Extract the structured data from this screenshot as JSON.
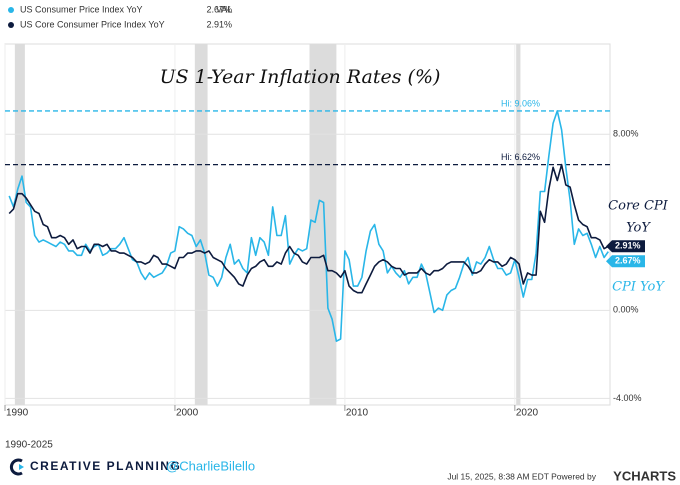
{
  "chart_data": {
    "type": "line",
    "title": "US 1-Year Inflation Rates (%)",
    "legend_header": "VAL",
    "xlim": [
      1990,
      2025.6
    ],
    "xticks": [
      1990,
      2000,
      2010,
      2020
    ],
    "ylim": [
      -4.3,
      12.1
    ],
    "yticks": [
      {
        "value": 8,
        "label": "8.00%"
      },
      {
        "value": 0,
        "label": "0.00%"
      },
      {
        "value": -4,
        "label": "-4.00%"
      }
    ],
    "grid": true,
    "shaded_periods": [
      [
        1990.58,
        1991.17
      ],
      [
        2001.17,
        2001.92
      ],
      [
        2007.92,
        2009.5
      ],
      [
        2020.08,
        2020.33
      ]
    ],
    "highs": [
      {
        "value": 9.06,
        "label": "Hi: 9.06%",
        "color": "#29b6e8"
      },
      {
        "value": 6.62,
        "label": "Hi: 6.62%",
        "color": "#0d1b3e"
      }
    ],
    "x": [
      1990.25,
      1990.5,
      1990.75,
      1991,
      1991.25,
      1991.5,
      1991.75,
      1992,
      1992.25,
      1992.5,
      1992.75,
      1993,
      1993.25,
      1993.5,
      1993.75,
      1994,
      1994.25,
      1994.5,
      1994.75,
      1995,
      1995.25,
      1995.5,
      1995.75,
      1996,
      1996.25,
      1996.5,
      1996.75,
      1997,
      1997.25,
      1997.5,
      1997.75,
      1998,
      1998.25,
      1998.5,
      1998.75,
      1999,
      1999.25,
      1999.5,
      1999.75,
      2000,
      2000.25,
      2000.5,
      2000.75,
      2001,
      2001.25,
      2001.5,
      2001.75,
      2002,
      2002.25,
      2002.5,
      2002.75,
      2003,
      2003.25,
      2003.5,
      2003.75,
      2004,
      2004.25,
      2004.5,
      2004.75,
      2005,
      2005.25,
      2005.5,
      2005.75,
      2006,
      2006.25,
      2006.5,
      2006.75,
      2007,
      2007.25,
      2007.5,
      2007.75,
      2008,
      2008.25,
      2008.5,
      2008.75,
      2009,
      2009.25,
      2009.5,
      2009.75,
      2010,
      2010.25,
      2010.5,
      2010.75,
      2011,
      2011.25,
      2011.5,
      2011.75,
      2012,
      2012.25,
      2012.5,
      2012.75,
      2013,
      2013.25,
      2013.5,
      2013.75,
      2014,
      2014.25,
      2014.5,
      2014.75,
      2015,
      2015.25,
      2015.5,
      2015.75,
      2016,
      2016.25,
      2016.5,
      2016.75,
      2017,
      2017.25,
      2017.5,
      2017.75,
      2018,
      2018.25,
      2018.5,
      2018.75,
      2019,
      2019.25,
      2019.5,
      2019.75,
      2020,
      2020.25,
      2020.5,
      2020.75,
      2021,
      2021.25,
      2021.5,
      2021.75,
      2022,
      2022.25,
      2022.5,
      2022.75,
      2023,
      2023.25,
      2023.5,
      2023.75,
      2024,
      2024.25,
      2024.5,
      2024.75,
      2025,
      2025.25,
      2025.5
    ],
    "series": [
      {
        "name": "US Consumer Price Index YoY",
        "color": "#29b6e8",
        "last_label": "2.67%",
        "tag_lines": [
          "CPI YoY"
        ],
        "values": [
          5.2,
          4.7,
          5.5,
          6.1,
          4.9,
          4.7,
          3.4,
          3.1,
          3.2,
          3.1,
          3.0,
          2.9,
          3.1,
          3.0,
          2.7,
          2.7,
          2.5,
          2.5,
          3.0,
          2.7,
          2.9,
          3.0,
          2.5,
          2.6,
          2.8,
          2.8,
          3.0,
          3.3,
          2.8,
          2.3,
          2.2,
          1.7,
          1.4,
          1.7,
          1.5,
          1.6,
          1.7,
          2.0,
          2.6,
          2.7,
          3.8,
          3.7,
          3.5,
          3.4,
          2.9,
          3.2,
          2.6,
          1.6,
          1.5,
          1.1,
          1.5,
          2.4,
          3.0,
          2.1,
          2.3,
          1.9,
          1.7,
          3.3,
          2.5,
          3.3,
          3.1,
          2.5,
          4.7,
          3.4,
          3.4,
          4.3,
          2.1,
          2.5,
          2.8,
          2.7,
          2.8,
          4.1,
          4.0,
          5.0,
          4.9,
          0.1,
          -0.4,
          -1.4,
          -1.3,
          2.7,
          2.3,
          1.1,
          1.1,
          1.5,
          2.7,
          3.6,
          3.9,
          3.0,
          2.7,
          1.7,
          2.0,
          1.7,
          1.5,
          1.8,
          1.2,
          1.5,
          1.5,
          2.1,
          1.7,
          0.8,
          -0.1,
          0.1,
          0.0,
          0.7,
          0.9,
          1.0,
          1.5,
          2.1,
          2.4,
          1.6,
          2.2,
          2.1,
          2.4,
          2.9,
          2.3,
          1.9,
          1.9,
          1.6,
          1.7,
          2.3,
          1.5,
          0.6,
          1.4,
          1.4,
          2.6,
          5.4,
          5.4,
          7.0,
          8.5,
          9.06,
          8.2,
          6.5,
          5.0,
          3.0,
          3.7,
          3.4,
          3.5,
          3.0,
          2.4,
          2.9,
          2.4,
          2.67
        ]
      },
      {
        "name": "US Core Consumer Price Index YoY",
        "color": "#0d1b3e",
        "last_label": "2.91%",
        "tag_lines": [
          "Core CPI",
          "YoY"
        ],
        "values": [
          4.4,
          4.6,
          5.3,
          5.3,
          5.1,
          4.8,
          4.5,
          4.4,
          3.9,
          3.8,
          3.3,
          3.3,
          3.4,
          3.3,
          3.0,
          3.2,
          2.8,
          2.9,
          2.9,
          2.6,
          3.0,
          3.0,
          2.9,
          3.0,
          2.7,
          2.7,
          2.6,
          2.6,
          2.5,
          2.4,
          2.2,
          2.2,
          2.1,
          2.2,
          2.5,
          2.4,
          2.1,
          2.1,
          2.0,
          1.9,
          2.4,
          2.4,
          2.6,
          2.6,
          2.7,
          2.7,
          2.6,
          2.7,
          2.4,
          2.3,
          2.2,
          1.9,
          1.7,
          1.5,
          1.2,
          1.1,
          1.6,
          1.9,
          2.0,
          2.2,
          2.3,
          2.0,
          2.0,
          2.2,
          2.1,
          2.6,
          2.9,
          2.6,
          2.5,
          2.2,
          2.1,
          2.4,
          2.4,
          2.4,
          2.5,
          1.8,
          1.8,
          1.7,
          1.5,
          1.8,
          1.1,
          0.9,
          0.8,
          0.8,
          1.2,
          1.6,
          2.0,
          2.2,
          2.3,
          2.2,
          2.0,
          1.9,
          1.9,
          1.6,
          1.7,
          1.7,
          1.7,
          1.9,
          1.7,
          1.6,
          1.8,
          1.8,
          1.9,
          2.1,
          2.2,
          2.2,
          2.2,
          2.2,
          2.0,
          1.7,
          1.7,
          1.8,
          2.1,
          2.3,
          2.2,
          2.2,
          2.0,
          2.1,
          2.4,
          2.3,
          2.1,
          1.2,
          1.7,
          1.6,
          1.6,
          4.5,
          4.0,
          5.5,
          6.5,
          5.9,
          6.62,
          5.7,
          5.6,
          4.8,
          4.1,
          3.9,
          3.8,
          3.3,
          3.3,
          3.2,
          2.8,
          2.91
        ]
      }
    ]
  },
  "footer": {
    "range": "1990-2025",
    "brand": "CREATIVE PLANNING",
    "handle": "@CharlieBilello",
    "timestamp": "Jul 15, 2025, 8:38 AM EDT Powered by",
    "provider": "YCHARTS"
  }
}
